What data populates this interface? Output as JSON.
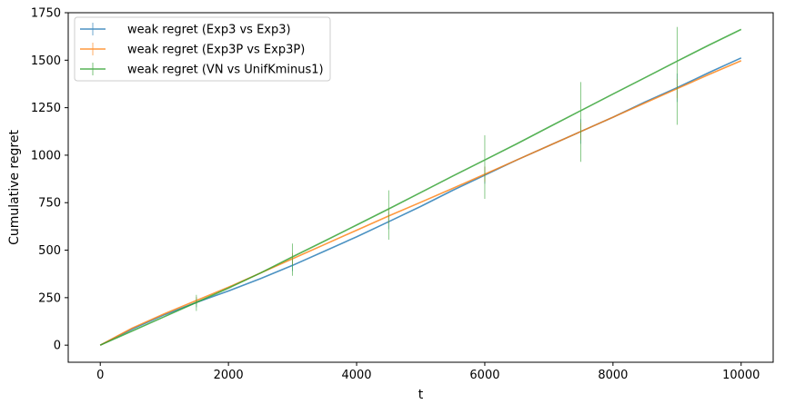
{
  "chart_data": {
    "type": "line",
    "title": "",
    "xlabel": "t",
    "ylabel": "Cumulative regret",
    "xlim": [
      -500,
      10500
    ],
    "ylim": [
      -90,
      1750
    ],
    "xticks": [
      0,
      2000,
      4000,
      6000,
      8000,
      10000
    ],
    "yticks": [
      0,
      250,
      500,
      750,
      1000,
      1250,
      1500,
      1750
    ],
    "legend_position": "top-left",
    "grid": false,
    "series": [
      {
        "name": "weak regret (Exp3 vs Exp3)",
        "color": "#1f77b4",
        "x": [
          0,
          500,
          1000,
          1500,
          2000,
          2500,
          3000,
          3500,
          4000,
          4500,
          5000,
          5500,
          6000,
          6500,
          7000,
          7500,
          8000,
          8500,
          9000,
          9500,
          10000
        ],
        "y": [
          0,
          85,
          160,
          225,
          285,
          350,
          420,
          495,
          570,
          650,
          730,
          815,
          895,
          975,
          1050,
          1125,
          1200,
          1280,
          1355,
          1435,
          1512
        ],
        "errorbars": [
          {
            "x": 1500,
            "low": 200,
            "high": 250
          },
          {
            "x": 3000,
            "low": 390,
            "high": 450
          },
          {
            "x": 4500,
            "low": 610,
            "high": 700
          },
          {
            "x": 6000,
            "low": 850,
            "high": 940
          },
          {
            "x": 7500,
            "low": 1060,
            "high": 1190
          },
          {
            "x": 9000,
            "low": 1280,
            "high": 1430
          }
        ]
      },
      {
        "name": "weak regret (Exp3P vs Exp3P)",
        "color": "#ff7f0e",
        "x": [
          0,
          500,
          1000,
          1500,
          2000,
          2500,
          3000,
          3500,
          4000,
          4500,
          5000,
          5500,
          6000,
          6500,
          7000,
          7500,
          8000,
          8500,
          9000,
          9500,
          10000
        ],
        "y": [
          0,
          90,
          165,
          235,
          305,
          380,
          455,
          530,
          605,
          680,
          752,
          825,
          900,
          975,
          1050,
          1125,
          1200,
          1275,
          1350,
          1425,
          1497
        ],
        "errorbars": [
          {
            "x": 1500,
            "low": 215,
            "high": 255
          },
          {
            "x": 3000,
            "low": 425,
            "high": 485
          },
          {
            "x": 4500,
            "low": 640,
            "high": 720
          },
          {
            "x": 6000,
            "low": 860,
            "high": 940
          },
          {
            "x": 7500,
            "low": 1080,
            "high": 1170
          },
          {
            "x": 9000,
            "low": 1300,
            "high": 1400
          }
        ]
      },
      {
        "name": "weak regret (VN vs UnifKminus1)",
        "color": "#2ca02c",
        "x": [
          0,
          500,
          1000,
          1500,
          2000,
          2500,
          3000,
          3500,
          4000,
          4500,
          5000,
          5500,
          6000,
          6500,
          7000,
          7500,
          8000,
          8500,
          9000,
          9500,
          10000
        ],
        "y": [
          0,
          75,
          150,
          225,
          300,
          380,
          465,
          548,
          632,
          717,
          803,
          890,
          975,
          1060,
          1148,
          1235,
          1322,
          1408,
          1495,
          1580,
          1662
        ],
        "errorbars": [
          {
            "x": 1500,
            "low": 180,
            "high": 265
          },
          {
            "x": 3000,
            "low": 365,
            "high": 535
          },
          {
            "x": 4500,
            "low": 555,
            "high": 815
          },
          {
            "x": 6000,
            "low": 770,
            "high": 1105
          },
          {
            "x": 7500,
            "low": 965,
            "high": 1385
          },
          {
            "x": 9000,
            "low": 1160,
            "high": 1675
          }
        ]
      }
    ]
  }
}
